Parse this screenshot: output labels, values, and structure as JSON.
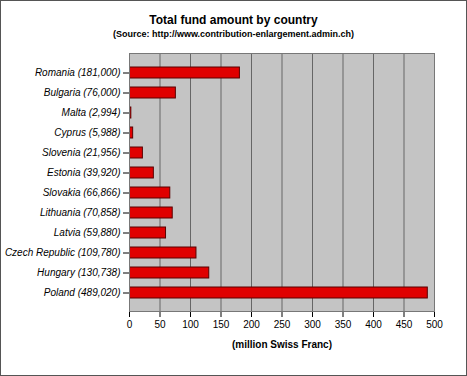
{
  "chart_data": {
    "type": "bar",
    "title": "Total fund amount by country",
    "subtitle": "(Source: http://www.contribution-enlargement.admin.ch)",
    "x_label": "(million Swiss Franc)",
    "orientation": "horizontal",
    "categories": [
      "Romania (181,000)",
      "Bulgaria (76,000)",
      "Malta (2,994)",
      "Cyprus (5,988)",
      "Slovenia (21,956)",
      "Estonia (39,920)",
      "Slovakia (66,866)",
      "Lithuania (70,858)",
      "Latvia (59,880)",
      "Czech Republic (109,780)",
      "Hungary (130,738)",
      "Poland (489,020)"
    ],
    "values": [
      181.0,
      76.0,
      2.994,
      5.988,
      21.956,
      39.92,
      66.866,
      70.858,
      59.88,
      109.78,
      130.738,
      489.02
    ],
    "color": "#e00000",
    "xlim": [
      0,
      500
    ],
    "xticks": [
      0,
      50,
      100,
      150,
      200,
      250,
      300,
      350,
      400,
      450,
      500
    ],
    "grid": true
  }
}
